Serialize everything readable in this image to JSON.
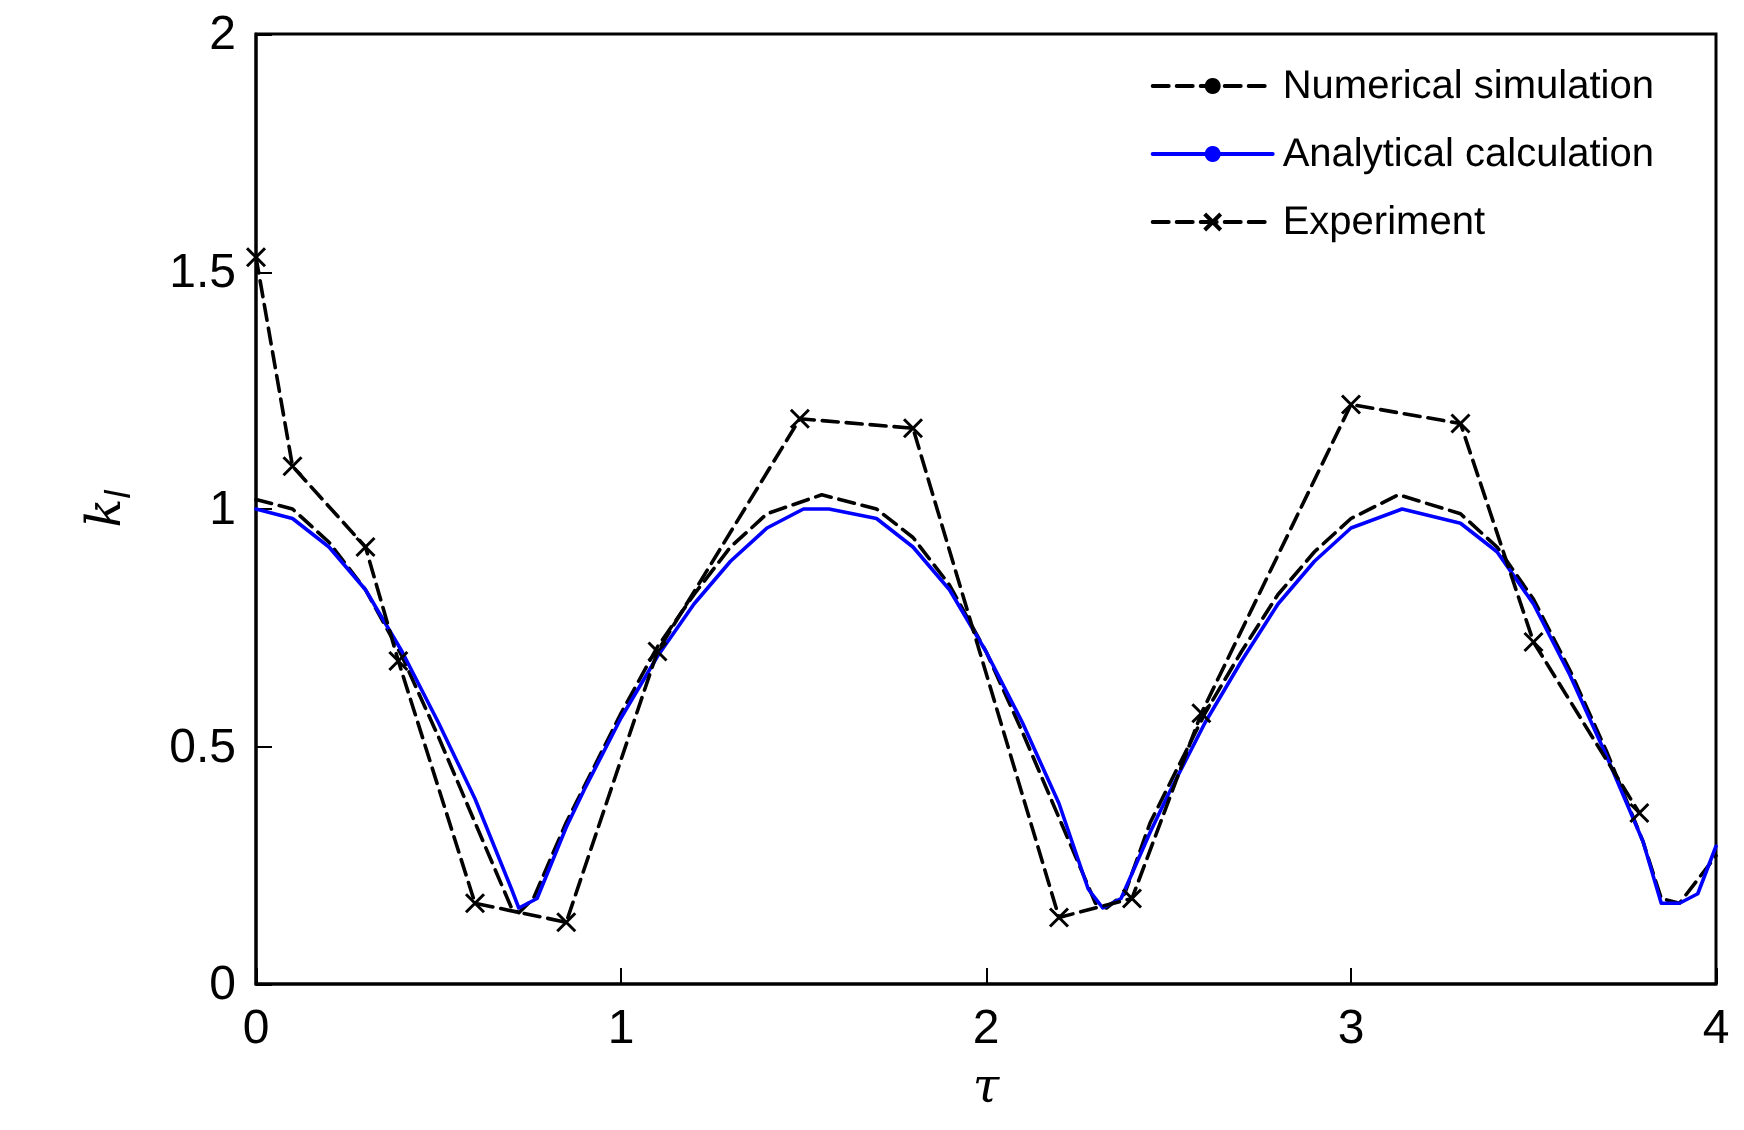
{
  "chart_data": {
    "type": "line",
    "xlabel": "τ",
    "ylabel": "k$_{l}$",
    "xlim": [
      0,
      4
    ],
    "xticks": [
      0,
      1,
      2,
      3,
      4
    ],
    "ylim": [
      0,
      2
    ],
    "yticks": [
      0,
      0.5,
      1,
      1.5,
      2
    ],
    "grid": false,
    "legend": "top right",
    "series": [
      {
        "name": "Numerical simulation",
        "color": "#000000",
        "line_style": "dashed",
        "marker": "none",
        "x": [
          0,
          0.1,
          0.2,
          0.3,
          0.4,
          0.5,
          0.6,
          0.7,
          0.72,
          0.76,
          0.85,
          1.0,
          1.1,
          1.2,
          1.3,
          1.4,
          1.55,
          1.7,
          1.8,
          1.9,
          2.0,
          2.1,
          2.2,
          2.3,
          2.33,
          2.38,
          2.45,
          2.6,
          2.7,
          2.8,
          2.9,
          3.0,
          3.13,
          3.3,
          3.4,
          3.5,
          3.6,
          3.7,
          3.8,
          3.85,
          3.9,
          4.0
        ],
        "values": [
          1.02,
          1.0,
          0.93,
          0.83,
          0.69,
          0.52,
          0.34,
          0.16,
          0.15,
          0.18,
          0.34,
          0.57,
          0.71,
          0.82,
          0.92,
          0.99,
          1.03,
          1.0,
          0.94,
          0.84,
          0.7,
          0.53,
          0.35,
          0.17,
          0.16,
          0.19,
          0.34,
          0.57,
          0.7,
          0.82,
          0.91,
          0.98,
          1.03,
          0.99,
          0.92,
          0.81,
          0.66,
          0.49,
          0.3,
          0.18,
          0.17,
          0.27
        ]
      },
      {
        "name": "Analytical calculation",
        "color": "#0000ff",
        "line_style": "solid",
        "marker": "none",
        "x": [
          0,
          0.1,
          0.2,
          0.3,
          0.4,
          0.5,
          0.6,
          0.7,
          0.72,
          0.77,
          0.85,
          0.9,
          1.0,
          1.1,
          1.2,
          1.3,
          1.4,
          1.5,
          1.57,
          1.7,
          1.8,
          1.9,
          2.0,
          2.1,
          2.2,
          2.28,
          2.32,
          2.37,
          2.45,
          2.5,
          2.6,
          2.7,
          2.8,
          2.9,
          3.0,
          3.14,
          3.3,
          3.4,
          3.5,
          3.6,
          3.7,
          3.8,
          3.85,
          3.9,
          3.95,
          4.0
        ],
        "values": [
          1.0,
          0.98,
          0.92,
          0.83,
          0.7,
          0.55,
          0.39,
          0.2,
          0.16,
          0.18,
          0.33,
          0.41,
          0.56,
          0.69,
          0.8,
          0.89,
          0.96,
          1.0,
          1.0,
          0.98,
          0.92,
          0.83,
          0.7,
          0.55,
          0.38,
          0.2,
          0.16,
          0.18,
          0.32,
          0.4,
          0.55,
          0.68,
          0.8,
          0.89,
          0.96,
          1.0,
          0.97,
          0.91,
          0.8,
          0.65,
          0.48,
          0.3,
          0.17,
          0.17,
          0.19,
          0.29
        ]
      },
      {
        "name": "Experiment",
        "color": "#000000",
        "line_style": "dashed",
        "marker": "cross",
        "x": [
          0,
          0.1,
          0.3,
          0.39,
          0.6,
          0.85,
          1.1,
          1.49,
          1.8,
          2.2,
          2.4,
          2.59,
          3.0,
          3.3,
          3.5,
          3.79
        ],
        "values": [
          1.53,
          1.09,
          0.92,
          0.68,
          0.17,
          0.13,
          0.7,
          1.19,
          1.17,
          0.14,
          0.18,
          0.57,
          1.22,
          1.18,
          0.72,
          0.36
        ]
      }
    ]
  }
}
